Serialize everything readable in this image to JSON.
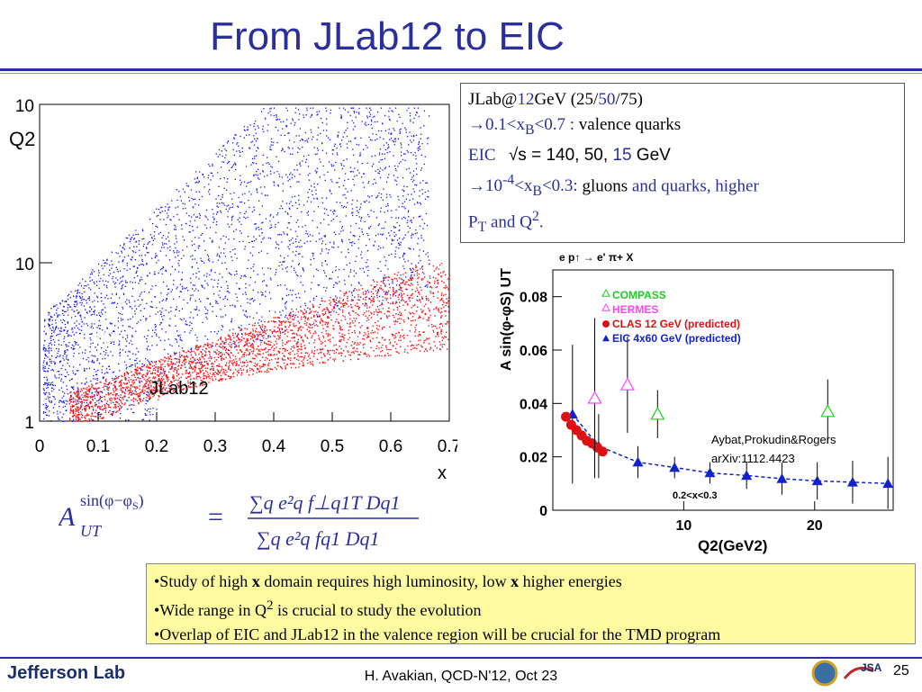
{
  "slide": {
    "title": "From JLab12 to EIC",
    "footer": "H. Avakian, QCD-N'12,  Oct 23",
    "page_number": "25",
    "logo_text": "Jefferson Lab",
    "logo_jsa": "JSA"
  },
  "info_box": {
    "l1_a": "JLab@",
    "l1_b": "12",
    "l1_c": "GeV (25/",
    "l1_d": "50",
    "l1_e": "/75)",
    "l2_arrow": "→",
    "l2_range": "0.1<x",
    "l2_sub": "B",
    "l2_range2": "<0.7 :",
    "l2_text": " valence quarks",
    "l3_a": "EIC",
    "l3_b": "√s = 140, 50, ",
    "l3_c": "15",
    "l3_d": " GeV",
    "l4_arrow": "→",
    "l4_a": "10",
    "l4_sup": "-4",
    "l4_b": "<x",
    "l4_sub": "B",
    "l4_c": "<0.3:",
    "l4_d": " gluons ",
    "l4_e": "and quarks, higher",
    "l5_a": "P",
    "l5_sub": "T",
    "l5_b": " and Q",
    "l5_sup": "2",
    "l5_c": "."
  },
  "formula": {
    "lhs_A": "A",
    "lhs_sup": "sin(φ−φ",
    "lhs_sup_sub": "S",
    "lhs_sup_end": ")",
    "lhs_sub": "UT",
    "eq": "=",
    "num": "∑q e²q f⊥q1T Dq1",
    "den": "∑q e²q fq1 Dq1"
  },
  "bullets": [
    {
      "pre": "•Study of high ",
      "bold": "x",
      "mid": " domain  requires high luminosity, low ",
      "bold2": "x",
      "post": " higher energies"
    },
    {
      "pre": "•Wide range in Q",
      "sup": "2",
      "post": " is crucial to study the evolution"
    },
    {
      "pre": "•Overlap of EIC and JLab12 in the valence region will be crucial for the TMD program"
    }
  ],
  "chart_data": [
    {
      "type": "scatter",
      "xlabel": "x",
      "ylabel": "Q2",
      "xlim": [
        0,
        0.7
      ],
      "ylim": [
        1,
        100
      ],
      "yscale": "log",
      "xticks": [
        "0",
        "0.1",
        "0.2",
        "0.3",
        "0.4",
        "0.5",
        "0.6",
        "0.7"
      ],
      "yticks": [
        "1",
        "10",
        "10"
      ],
      "series": [
        {
          "name": "EIC",
          "color": "#1010ff"
        },
        {
          "name": "JLab12",
          "color": "#ff1010"
        }
      ]
    },
    {
      "type": "scatter",
      "title": "e p↑ → e' π+ X",
      "xlabel": "Q2(GeV2)",
      "ylabel": "A sin(φ-φS) UT",
      "xlim": [
        0,
        26
      ],
      "ylim": [
        0,
        0.09
      ],
      "xticks": [
        "10",
        "20"
      ],
      "yticks": [
        "0",
        "0.02",
        "0.04",
        "0.06",
        "0.08"
      ],
      "annotation_range": "0.2<x<0.3",
      "annotation_ref1": "Aybat,Prokudin&Rogers",
      "annotation_ref2": "arXiv:1112.4423",
      "legend": [
        {
          "name": "COMPASS",
          "color": "#22cc22",
          "marker": "open-triangle"
        },
        {
          "name": "HERMES",
          "color": "#ff44ff",
          "marker": "open-triangle"
        },
        {
          "name": "CLAS 12 GeV (predicted)",
          "color": "#dd1111",
          "marker": "circle"
        },
        {
          "name": "EIC 4x60 GeV (predicted)",
          "color": "#1122cc",
          "marker": "triangle"
        }
      ],
      "compass": [
        {
          "x": 8.0,
          "y": 0.036
        },
        {
          "x": 21.0,
          "y": 0.037
        }
      ],
      "hermes": [
        {
          "x": 3.2,
          "y": 0.042
        },
        {
          "x": 5.7,
          "y": 0.047
        }
      ],
      "clas": [
        {
          "x": 1.0,
          "y": 0.035
        },
        {
          "x": 1.4,
          "y": 0.032
        },
        {
          "x": 1.8,
          "y": 0.03
        },
        {
          "x": 2.2,
          "y": 0.028
        },
        {
          "x": 2.6,
          "y": 0.026
        },
        {
          "x": 3.0,
          "y": 0.025
        },
        {
          "x": 3.4,
          "y": 0.0235
        },
        {
          "x": 3.8,
          "y": 0.022
        }
      ],
      "eic": [
        {
          "x": 1.5,
          "y": 0.036
        },
        {
          "x": 3.5,
          "y": 0.024
        },
        {
          "x": 6.5,
          "y": 0.018
        },
        {
          "x": 9.3,
          "y": 0.016
        },
        {
          "x": 12.0,
          "y": 0.014
        },
        {
          "x": 14.8,
          "y": 0.013
        },
        {
          "x": 17.5,
          "y": 0.0118
        },
        {
          "x": 20.2,
          "y": 0.011
        },
        {
          "x": 22.9,
          "y": 0.0105
        },
        {
          "x": 25.6,
          "y": 0.01
        }
      ],
      "eic_err": [
        0.026,
        0.012,
        0.006,
        0.004,
        0.004,
        0.005,
        0.006,
        0.007,
        0.008,
        0.01
      ],
      "compass_err": [
        0.009,
        0.012
      ],
      "hermes_err": [
        0.03,
        0.018
      ]
    }
  ],
  "colors": {
    "title": "#2b2f9e",
    "bullet_bg": "#fffba0"
  }
}
